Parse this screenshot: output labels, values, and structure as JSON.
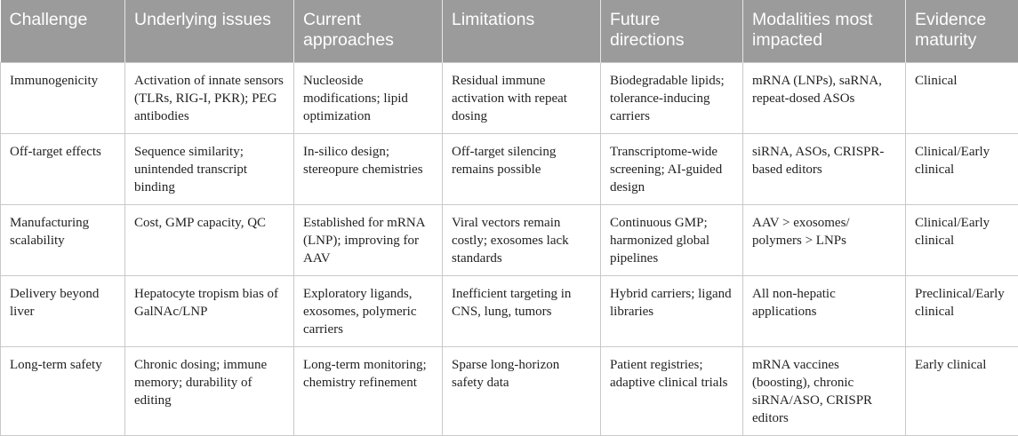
{
  "table": {
    "header": [
      "Challenge",
      "Underlying issues",
      "Current approaches",
      "Limitations",
      "Future directions",
      "Modalities most impacted",
      "Evidence maturity"
    ],
    "rows": [
      [
        "Immunogenicity",
        "Activation of innate sensors (TLRs, RIG-I, PKR); PEG antibodies",
        "Nucleoside modifications; lipid optimization",
        "Residual immune activation with repeat dosing",
        "Biodegradable lipids; tolerance-inducing carriers",
        "mRNA (LNPs), saRNA, repeat-dosed ASOs",
        "Clinical"
      ],
      [
        "Off-target effects",
        "Sequence similarity; unintended transcript binding",
        "In-silico design; stereopure chemistries",
        "Off-target silencing remains possible",
        "Transcriptome-wide screening; AI-guided design",
        "siRNA, ASOs, CRISPR-based editors",
        "Clinical/Early clinical"
      ],
      [
        "Manufacturing scalability",
        "Cost, GMP capacity, QC",
        "Established for mRNA (LNP); improving for AAV",
        "Viral vectors remain costly; exosomes lack standards",
        "Continuous GMP; harmonized global pipelines",
        "AAV > exosomes/ polymers > LNPs",
        "Clinical/Early clinical"
      ],
      [
        "Delivery beyond liver",
        "Hepatocyte tropism bias of GalNAc/LNP",
        "Exploratory ligands, exosomes, polymeric carriers",
        "Inefficient targeting in CNS, lung, tumors",
        "Hybrid carriers; ligand libraries",
        "All non-hepatic applications",
        "Preclinical/Early clinical"
      ],
      [
        "Long-term safety",
        "Chronic dosing; immune memory; durability of editing",
        "Long-term monitoring; chemistry refinement",
        "Sparse long-horizon safety data",
        "Patient registries; adaptive clinical trials",
        "mRNA vaccines (boosting), chronic siRNA/ASO, CRISPR editors",
        "Early clinical"
      ]
    ]
  }
}
